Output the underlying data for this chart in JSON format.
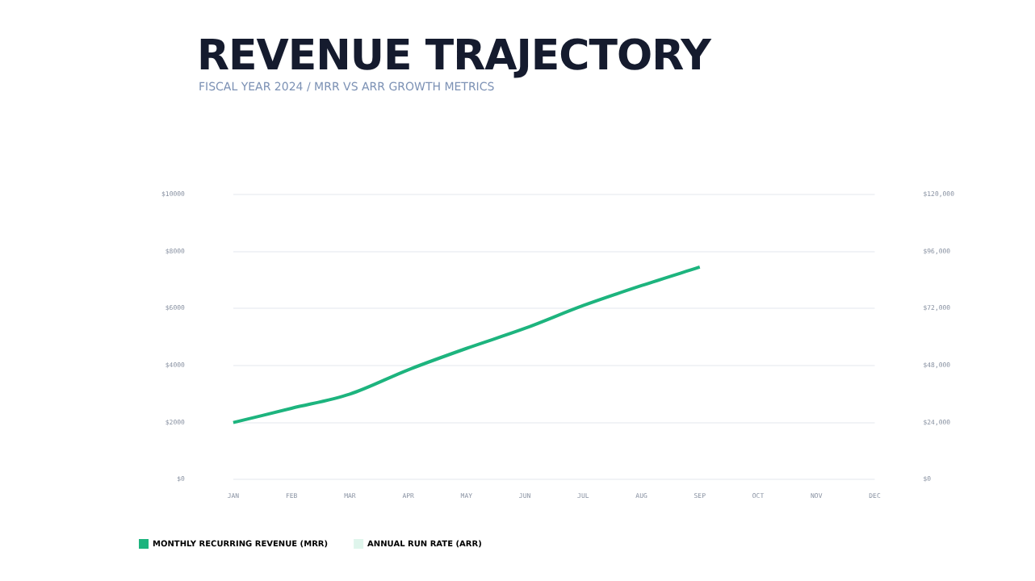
{
  "chart_data": {
    "type": "line",
    "title": "REVENUE TRAJECTORY",
    "subtitle": "FISCAL YEAR 2024 / MRR VS ARR GROWTH METRICS",
    "categories": [
      "JAN",
      "FEB",
      "MAR",
      "APR",
      "MAY",
      "JUN",
      "JUL",
      "AUG",
      "SEP",
      "OCT",
      "NOV",
      "DEC"
    ],
    "series": [
      {
        "name": "MONTHLY RECURRING REVENUE (MRR)",
        "color": "#1db47e",
        "values": [
          2000,
          2500,
          3000,
          3850,
          4600,
          5300,
          6100,
          6800,
          7450,
          null,
          null,
          null
        ]
      },
      {
        "name": "ANNUAL RUN RATE (ARR)",
        "color": "#dff5ec",
        "values": [
          null,
          null,
          null,
          null,
          null,
          null,
          null,
          null,
          null,
          null,
          null,
          null
        ]
      }
    ],
    "ylim": [
      0,
      10000
    ],
    "yticks": [
      {
        "value": 0,
        "label": "$0"
      },
      {
        "value": 2000,
        "label": "$2000"
      },
      {
        "value": 4000,
        "label": "$4000"
      },
      {
        "value": 6000,
        "label": "$6000"
      },
      {
        "value": 8000,
        "label": "$8000"
      },
      {
        "value": 10000,
        "label": "$10000"
      }
    ],
    "y2lim": [
      0,
      120000
    ],
    "y2ticks": [
      {
        "value": 0,
        "label": "$0"
      },
      {
        "value": 24000,
        "label": "$24,000"
      },
      {
        "value": 48000,
        "label": "$48,000"
      },
      {
        "value": 72000,
        "label": "$72,000"
      },
      {
        "value": 96000,
        "label": "$96,000"
      },
      {
        "value": 120000,
        "label": "$120,000"
      }
    ],
    "grid": "y",
    "legend": "bottom left",
    "marker": "none",
    "line_style": "solid"
  }
}
